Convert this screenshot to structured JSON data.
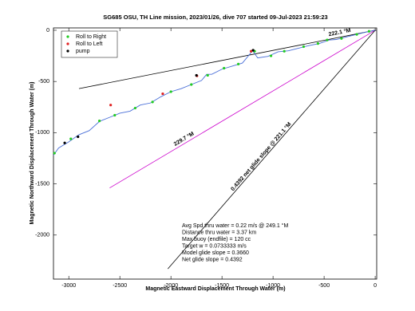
{
  "chart_data": {
    "type": "line",
    "title": "SG685 OSU, TH Line mission, 2023/01/26, dive 707 started 09-Jul-2023 21:59:23",
    "xlabel": "Magnetic Eastward Displacement Through Water (m)",
    "ylabel": "Magnetic Northward Displacement Through Water (m)",
    "xlim": [
      -3150,
      15
    ],
    "ylim": [
      -2430,
      23
    ],
    "xticks": [
      -3000,
      -2500,
      -2000,
      -1500,
      -1000,
      -500,
      0
    ],
    "yticks": [
      -2000,
      -1500,
      -1000,
      -500,
      0
    ],
    "grid": false,
    "legend": "upper left",
    "track": {
      "color": "#4a6fd8",
      "x": [
        0,
        -100,
        -200,
        -300,
        -380,
        -450,
        -550,
        -650,
        -750,
        -850,
        -950,
        -1050,
        -1150,
        -1200,
        -1300,
        -1400,
        -1500,
        -1600,
        -1650,
        -1700,
        -1800,
        -1900,
        -2000,
        -2100,
        -2200,
        -2300,
        -2400,
        -2500,
        -2600,
        -2700,
        -2800,
        -2900,
        -3000,
        -3100,
        -3150
      ],
      "y": [
        0,
        -20,
        -45,
        -70,
        -90,
        -95,
        -130,
        -150,
        -175,
        -200,
        -210,
        -255,
        -270,
        -200,
        -320,
        -350,
        -380,
        -430,
        -430,
        -490,
        -530,
        -570,
        -600,
        -650,
        -710,
        -730,
        -790,
        -810,
        -850,
        -890,
        -980,
        -1020,
        -1090,
        -1150,
        -1220
      ]
    },
    "series": [
      {
        "name": "Roll to Right",
        "color": "#22cc22",
        "x": [
          -60,
          -180,
          -330,
          -470,
          -560,
          -700,
          -890,
          -1020,
          -1180,
          -1340,
          -1480,
          -1640,
          -1800,
          -2000,
          -2180,
          -2350,
          -2550,
          -2700,
          -2980,
          -3140
        ],
        "y": [
          -10,
          -40,
          -80,
          -95,
          -130,
          -160,
          -205,
          -250,
          -205,
          -330,
          -370,
          -440,
          -530,
          -600,
          -700,
          -760,
          -830,
          -885,
          -1060,
          -1200
        ]
      },
      {
        "name": "Roll to Left",
        "color": "#e02020",
        "x": [
          -1215,
          -1745,
          -2590,
          -2080
        ],
        "y": [
          -205,
          -445,
          -730,
          -620
        ]
      },
      {
        "name": "pump",
        "color": "#000000",
        "x": [
          -1195,
          -1750,
          -2910,
          -3040
        ],
        "y": [
          -195,
          -440,
          -1040,
          -1100
        ]
      }
    ],
    "lines": [
      {
        "color": "#000000",
        "x": [
          0,
          -2900
        ],
        "y": [
          0,
          -570
        ],
        "label": "222.1 °M"
      },
      {
        "color": "#cc00cc",
        "x": [
          0,
          -2600
        ],
        "y": [
          0,
          -1540
        ],
        "label": "229.7 °M"
      },
      {
        "color": "#000000",
        "x": [
          0,
          -2030
        ],
        "y": [
          0,
          -2330
        ],
        "label": "0.4392 net glide slope @ 221.1 °M"
      }
    ],
    "annotations": [
      "Avg Spd thru water = 0.22 m/s @ 249.1 °M",
      "Distance thru water = 3.37 km",
      "Max buoy (endfile) = 120 cc",
      "Target w = 0.0733333 m/s",
      "Model glide slope = 0.3660",
      "Net glide slope = 0.4392"
    ]
  }
}
